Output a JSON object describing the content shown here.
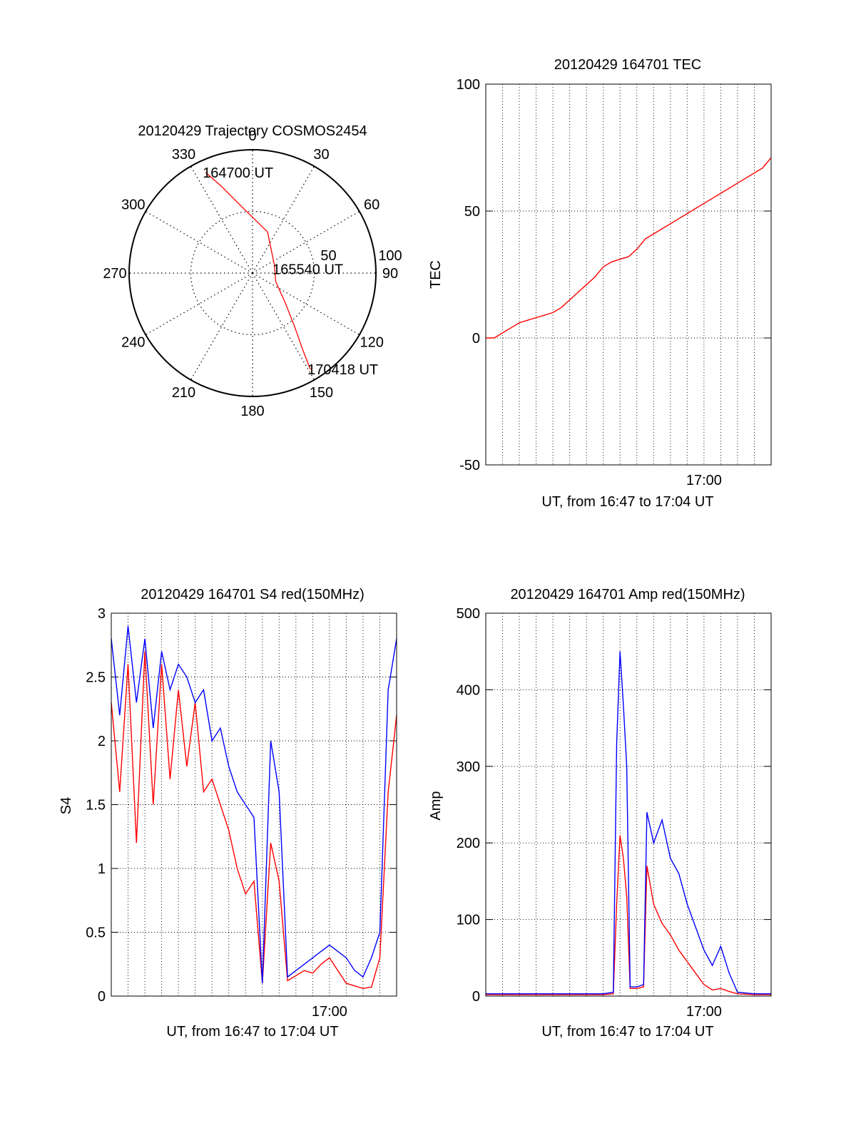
{
  "chart_data": [
    {
      "type": "polar",
      "title": "20120429 Trajectory COSMOS2454",
      "azimuth_labels": [
        "0",
        "30",
        "60",
        "90",
        "120",
        "150",
        "180",
        "210",
        "240",
        "270",
        "300",
        "330"
      ],
      "radius_labels": [
        "50",
        "100"
      ],
      "trajectory": {
        "color": "#ff0000",
        "points": [
          {
            "az": 335,
            "el": 9
          },
          {
            "az": 340,
            "el": 22
          },
          {
            "az": 350,
            "el": 40
          },
          {
            "az": 20,
            "el": 58
          },
          {
            "az": 70,
            "el": 73
          },
          {
            "az": 110,
            "el": 72
          },
          {
            "az": 132,
            "el": 58
          },
          {
            "az": 142,
            "el": 40
          },
          {
            "az": 147,
            "el": 22
          },
          {
            "az": 149,
            "el": 8
          }
        ],
        "annotations": [
          {
            "text": "164700 UT",
            "az": 335,
            "el": 9
          },
          {
            "text": "165540 UT",
            "az": 80,
            "el": 73
          },
          {
            "text": "170418 UT",
            "az": 149,
            "el": 8
          }
        ]
      }
    },
    {
      "type": "line",
      "title": "20120429 164701 TEC",
      "xlabel": "UT, from 16:47 to 17:04 UT",
      "ylabel": "TEC",
      "ylim": [
        -50,
        100
      ],
      "yticks": [
        "100",
        "50",
        "0",
        "-50"
      ],
      "xticks": [
        "17:00"
      ],
      "grid": true,
      "series": [
        {
          "color": "#ff0000",
          "x": [
            0.0,
            0.5,
            1.0,
            1.5,
            2.0,
            2.5,
            3.0,
            3.5,
            4.0,
            4.5,
            5.0,
            5.5,
            6.0,
            6.5,
            7.0,
            7.5,
            8.0,
            8.5,
            9.0,
            9.5,
            10.0,
            10.5,
            11.0,
            11.5,
            12.0,
            12.5,
            13.0,
            13.5,
            14.0,
            14.5,
            15.0,
            15.5,
            16.0,
            16.5,
            17.0
          ],
          "y": [
            0,
            0,
            2,
            4,
            6,
            7,
            8,
            9,
            10,
            12,
            15,
            18,
            21,
            24,
            28,
            30,
            31,
            32,
            35,
            39,
            41,
            43,
            45,
            47,
            49,
            51,
            53,
            55,
            57,
            59,
            61,
            63,
            65,
            67,
            71
          ]
        }
      ]
    },
    {
      "type": "line",
      "title": "20120429 164701 S4 red(150MHz)",
      "xlabel": "UT, from 16:47 to 17:04 UT",
      "ylabel": "S4",
      "ylim": [
        0,
        3
      ],
      "yticks": [
        "3",
        "2.5",
        "2",
        "1.5",
        "1",
        "0.5",
        "0"
      ],
      "xticks": [
        "17:00"
      ],
      "grid": true,
      "series": [
        {
          "color": "#ff0000",
          "x": [
            0.0,
            0.5,
            1.0,
            1.5,
            2.0,
            2.5,
            3.0,
            3.5,
            4.0,
            4.5,
            5.0,
            5.5,
            6.0,
            6.5,
            7.0,
            7.5,
            8.0,
            8.5,
            9.0,
            9.5,
            10.0,
            10.5,
            11.0,
            11.5,
            12.0,
            12.5,
            13.0,
            13.5,
            14.0,
            14.5,
            15.0,
            15.5,
            16.0,
            16.5,
            17.0
          ],
          "y": [
            2.3,
            1.6,
            2.6,
            1.2,
            2.7,
            1.5,
            2.6,
            1.7,
            2.4,
            1.8,
            2.3,
            1.6,
            1.7,
            1.5,
            1.3,
            1.0,
            0.8,
            0.9,
            0.1,
            1.2,
            0.9,
            0.12,
            0.16,
            0.2,
            0.18,
            0.25,
            0.3,
            0.2,
            0.1,
            0.08,
            0.06,
            0.07,
            0.3,
            1.6,
            2.2
          ]
        },
        {
          "color": "#0000ff",
          "x": [
            0.0,
            0.5,
            1.0,
            1.5,
            2.0,
            2.5,
            3.0,
            3.5,
            4.0,
            4.5,
            5.0,
            5.5,
            6.0,
            6.5,
            7.0,
            7.5,
            8.0,
            8.5,
            9.0,
            9.5,
            10.0,
            10.5,
            11.0,
            11.5,
            12.0,
            12.5,
            13.0,
            13.5,
            14.0,
            14.5,
            15.0,
            15.5,
            16.0,
            16.5,
            17.0
          ],
          "y": [
            2.8,
            2.2,
            2.9,
            2.3,
            2.8,
            2.1,
            2.7,
            2.4,
            2.6,
            2.5,
            2.3,
            2.4,
            2.0,
            2.1,
            1.8,
            1.6,
            1.5,
            1.4,
            0.1,
            2.0,
            1.6,
            0.15,
            0.2,
            0.25,
            0.3,
            0.35,
            0.4,
            0.35,
            0.3,
            0.2,
            0.15,
            0.3,
            0.5,
            2.4,
            2.8
          ]
        }
      ]
    },
    {
      "type": "line",
      "title": "20120429 164701 Amp red(150MHz)",
      "xlabel": "UT, from 16:47 to 17:04 UT",
      "ylabel": "Amp",
      "ylim": [
        0,
        500
      ],
      "yticks": [
        "500",
        "400",
        "300",
        "200",
        "100",
        "0"
      ],
      "xticks": [
        "17:00"
      ],
      "grid": true,
      "series": [
        {
          "color": "#ff0000",
          "x": [
            0.0,
            1.0,
            2.0,
            3.0,
            4.0,
            5.0,
            6.0,
            7.0,
            7.6,
            7.8,
            8.0,
            8.2,
            8.4,
            8.6,
            9.0,
            9.4,
            9.6,
            10.0,
            10.5,
            11.0,
            11.5,
            12.0,
            12.5,
            13.0,
            13.5,
            14.0,
            14.5,
            15.0,
            16.0,
            17.0
          ],
          "y": [
            2,
            2,
            2,
            2,
            2,
            2,
            2,
            2,
            3,
            120,
            210,
            180,
            130,
            10,
            10,
            12,
            170,
            120,
            95,
            80,
            60,
            45,
            30,
            15,
            8,
            10,
            6,
            3,
            2,
            2
          ]
        },
        {
          "color": "#0000ff",
          "x": [
            0.0,
            1.0,
            2.0,
            3.0,
            4.0,
            5.0,
            6.0,
            7.0,
            7.6,
            7.8,
            8.0,
            8.2,
            8.4,
            8.6,
            9.0,
            9.4,
            9.6,
            10.0,
            10.5,
            11.0,
            11.5,
            12.0,
            12.5,
            13.0,
            13.5,
            14.0,
            14.5,
            15.0,
            16.0,
            17.0
          ],
          "y": [
            3,
            3,
            3,
            3,
            3,
            3,
            3,
            3,
            5,
            330,
            450,
            380,
            300,
            12,
            12,
            15,
            240,
            200,
            230,
            180,
            160,
            120,
            90,
            60,
            40,
            65,
            30,
            5,
            3,
            3
          ]
        }
      ]
    }
  ]
}
